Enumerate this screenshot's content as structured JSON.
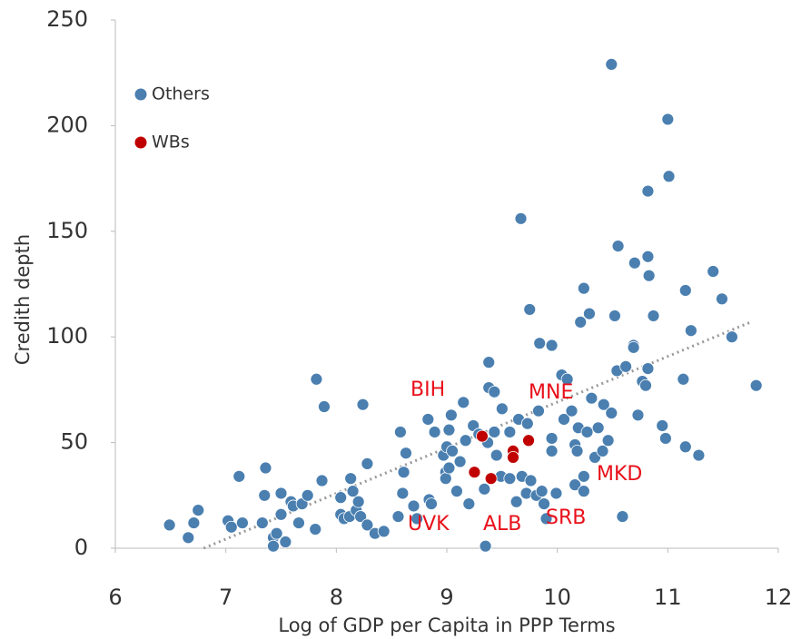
{
  "chart_data": {
    "type": "scatter",
    "x_label": "Log of GDP per Capita in PPP Terms",
    "y_label": "Credith depth",
    "xlim": [
      6,
      12
    ],
    "xticks": [
      6,
      7,
      8,
      9,
      10,
      11,
      12
    ],
    "ylim": [
      0,
      250
    ],
    "yticks": [
      0,
      50,
      100,
      150,
      200,
      250
    ],
    "grid": false,
    "legend": "upper left",
    "series": [
      {
        "name": "Others",
        "color": "#4a7fb0",
        "x": [
          6.49,
          6.66,
          6.71,
          6.75,
          7.02,
          7.05,
          7.15,
          7.12,
          7.33,
          7.36,
          7.35,
          7.43,
          7.43,
          7.46,
          7.5,
          7.5,
          7.54,
          7.59,
          7.61,
          7.66,
          7.69,
          7.74,
          7.81,
          7.82,
          7.89,
          7.87,
          8.04,
          8.04,
          8.07,
          8.12,
          8.13,
          8.15,
          8.18,
          8.2,
          8.22,
          8.24,
          8.28,
          8.28,
          8.35,
          8.43,
          8.56,
          8.58,
          8.61,
          8.63,
          8.6,
          8.7,
          8.73,
          8.83,
          8.84,
          8.86,
          8.89,
          8.97,
          8.99,
          8.99,
          9.0,
          9.02,
          9.02,
          9.04,
          9.05,
          9.09,
          9.12,
          9.15,
          9.17,
          9.2,
          9.24,
          9.29,
          9.34,
          9.35,
          9.37,
          9.38,
          9.38,
          9.43,
          9.43,
          9.45,
          9.49,
          9.5,
          9.57,
          9.57,
          9.63,
          9.65,
          9.67,
          9.68,
          9.72,
          9.73,
          9.75,
          9.76,
          9.81,
          9.83,
          9.84,
          9.86,
          9.88,
          9.9,
          9.95,
          9.95,
          9.95,
          9.99,
          10.04,
          10.06,
          10.09,
          10.13,
          10.16,
          10.16,
          10.18,
          10.19,
          10.21,
          10.24,
          10.24,
          10.24,
          10.27,
          10.29,
          10.31,
          10.34,
          10.37,
          10.41,
          10.42,
          10.46,
          10.49,
          10.49,
          10.52,
          10.54,
          10.55,
          10.59,
          10.62,
          10.69,
          10.69,
          10.7,
          10.73,
          10.77,
          10.8,
          10.82,
          10.82,
          10.82,
          10.83,
          10.87,
          10.95,
          10.98,
          11.0,
          11.01,
          11.14,
          11.16,
          11.16,
          11.21,
          11.28,
          11.41,
          11.49,
          11.58,
          11.8
        ],
        "values": [
          11,
          5,
          12,
          18,
          13,
          10,
          12,
          34,
          12,
          38,
          25,
          5,
          1,
          7,
          16,
          26,
          3,
          22,
          20,
          12,
          21,
          25,
          9,
          80,
          67,
          32,
          24,
          16,
          14,
          15,
          33,
          27,
          18,
          22,
          15,
          68,
          40,
          11,
          7,
          8,
          15,
          55,
          36,
          45,
          26,
          20,
          14,
          61,
          23,
          21,
          55,
          44,
          36,
          33,
          48,
          38,
          56,
          63,
          46,
          27,
          41,
          69,
          51,
          21,
          58,
          54,
          28,
          1,
          50,
          88,
          76,
          74,
          55,
          44,
          34,
          66,
          55,
          33,
          22,
          61,
          156,
          34,
          26,
          59,
          113,
          32,
          25,
          65,
          97,
          27,
          21,
          14,
          96,
          52,
          46,
          26,
          82,
          61,
          80,
          65,
          30,
          49,
          46,
          57,
          107,
          123,
          34,
          27,
          55,
          111,
          71,
          43,
          57,
          46,
          68,
          51,
          64,
          229,
          110,
          84,
          143,
          15,
          86,
          96,
          95,
          135,
          63,
          79,
          77,
          169,
          138,
          85,
          129,
          110,
          58,
          52,
          203,
          176,
          80,
          48,
          122,
          103,
          44,
          131,
          118,
          100,
          77
        ]
      },
      {
        "name": "WBs",
        "color": "#c00000",
        "x": [
          9.32,
          9.25,
          9.4,
          9.6,
          9.6,
          9.74
        ],
        "values": [
          53,
          36,
          33,
          46,
          43,
          51
        ]
      }
    ],
    "trendline": {
      "x": [
        6.8,
        11.75
      ],
      "y": [
        0,
        107
      ]
    },
    "annotations": [
      "BIH",
      "MNE",
      "MKD",
      "SRB",
      "ALB",
      "UVK"
    ]
  }
}
